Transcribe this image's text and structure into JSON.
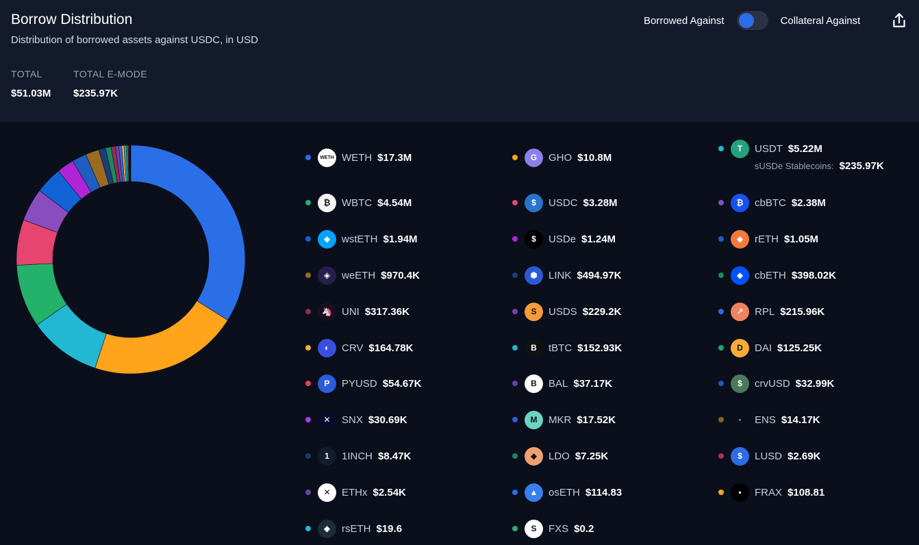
{
  "header": {
    "title": "Borrow Distribution",
    "subtitle": "Distribution of borrowed assets against USDC, in USD",
    "stats": [
      {
        "label": "TOTAL",
        "value": "$51.03M"
      },
      {
        "label": "TOTAL E-MODE",
        "value": "$235.97K"
      }
    ],
    "toggle": {
      "left_label": "Borrowed Against",
      "right_label": "Collateral Against"
    }
  },
  "usdt_sub": {
    "label": "sUSDe Stablecoins:",
    "value": "$235.97K"
  },
  "chart_data": {
    "type": "pie",
    "donut": true,
    "total": "$51.03M",
    "categories": [
      "WETH",
      "GHO",
      "USDT",
      "WBTC",
      "USDC",
      "cbBTC",
      "wstETH",
      "USDe",
      "rETH",
      "weETH",
      "LINK",
      "cbETH",
      "UNI",
      "USDS",
      "RPL",
      "CRV",
      "tBTC",
      "DAI",
      "PYUSD",
      "BAL",
      "crvUSD",
      "SNX",
      "MKR",
      "ENS",
      "1INCH",
      "LDO",
      "LUSD",
      "ETHx",
      "osETH",
      "FRAX",
      "rsETH",
      "FXS"
    ],
    "values": [
      17300000,
      10800000,
      5220000,
      4540000,
      3280000,
      2380000,
      1940000,
      1240000,
      1050000,
      970400,
      494970,
      398020,
      317360,
      229200,
      215960,
      164780,
      152930,
      125250,
      54670,
      37170,
      32990,
      30690,
      17520,
      14170,
      8470,
      7250,
      2690,
      2540,
      114.83,
      108.81,
      19.6,
      0.2
    ],
    "labels": [
      "$17.3M",
      "$10.8M",
      "$5.22M",
      "$4.54M",
      "$3.28M",
      "$2.38M",
      "$1.94M",
      "$1.24M",
      "$1.05M",
      "$970.4K",
      "$494.97K",
      "$398.02K",
      "$317.36K",
      "$229.2K",
      "$215.96K",
      "$164.78K",
      "$152.93K",
      "$125.25K",
      "$54.67K",
      "$37.17K",
      "$32.99K",
      "$30.69K",
      "$17.52K",
      "$14.17K",
      "$8.47K",
      "$7.25K",
      "$2.69K",
      "$2.54K",
      "$114.83",
      "$108.81",
      "$19.6",
      "$0.2"
    ],
    "colors": [
      "#2b6fe8",
      "#ffa41b",
      "#22b8d4",
      "#24b26b",
      "#e5456e",
      "#8a4dbf",
      "#1263d6",
      "#b125d9",
      "#1f5ec0",
      "#9a6b20",
      "#1a3f7a",
      "#1d8a5c",
      "#8f2f50",
      "#7b3fae",
      "#2c6ae0",
      "#ffae2e",
      "#26b3c8",
      "#1fa865",
      "#e6405f",
      "#6b3fa5",
      "#1c58c6",
      "#a33fe0",
      "#2a5fd8",
      "#8c6420",
      "#1f3a70",
      "#168a55",
      "#a33a55",
      "#6a44a8",
      "#2b6fe8",
      "#ffa41b",
      "#22b8d4",
      "#24b26b"
    ],
    "legend_placement": "right"
  },
  "icons": [
    "weth-icon",
    "gho-icon",
    "usdt-icon",
    "wbtc-icon",
    "usdc-icon",
    "cbbtc-icon",
    "wsteth-icon",
    "usde-icon",
    "reth-icon",
    "weeth-icon",
    "link-icon",
    "cbeth-icon",
    "uni-icon",
    "usds-icon",
    "rpl-icon",
    "crv-icon",
    "tbtc-icon",
    "dai-icon",
    "pyusd-icon",
    "bal-icon",
    "crvusd-icon",
    "snx-icon",
    "mkr-icon",
    "ens-icon",
    "1inch-icon",
    "ldo-icon",
    "lusd-icon",
    "ethx-icon",
    "oseth-icon",
    "frax-icon",
    "rseth-icon",
    "fxs-icon"
  ],
  "icon_glyphs": [
    "WETH",
    "G",
    "T",
    "₿",
    "$",
    "₿",
    "◆",
    "$",
    "◆",
    "◈",
    "⬢",
    "◆",
    "🦄",
    "S",
    "↗",
    "◐",
    "B",
    "D",
    "P",
    "B",
    "$",
    "✕",
    "M",
    "◦",
    "1",
    "◆",
    "$",
    "✕",
    "▲",
    "▪",
    "◆",
    "S"
  ],
  "icon_colors": [
    "#ffffff",
    "#8e7ee9",
    "#26a17b",
    "#f5f5f5",
    "#2775ca",
    "#1652f0",
    "#00a3ff",
    "#000000",
    "#f47a3a",
    "#271f4d",
    "#2a5ada",
    "#0052ff",
    "#1a0f20",
    "#f49b3c",
    "#f0845f",
    "#3a4fe0",
    "#111111",
    "#f5ac37",
    "#2c5dd9",
    "#ffffff",
    "#4a7a5a",
    "#0b0c2a",
    "#6ad3c4",
    "#0b0f1c",
    "#141c30",
    "#f0a070",
    "#2e6ce6",
    "#ffffff",
    "#3a7ef0",
    "#000000",
    "#1a2e3a",
    "#ffffff"
  ]
}
